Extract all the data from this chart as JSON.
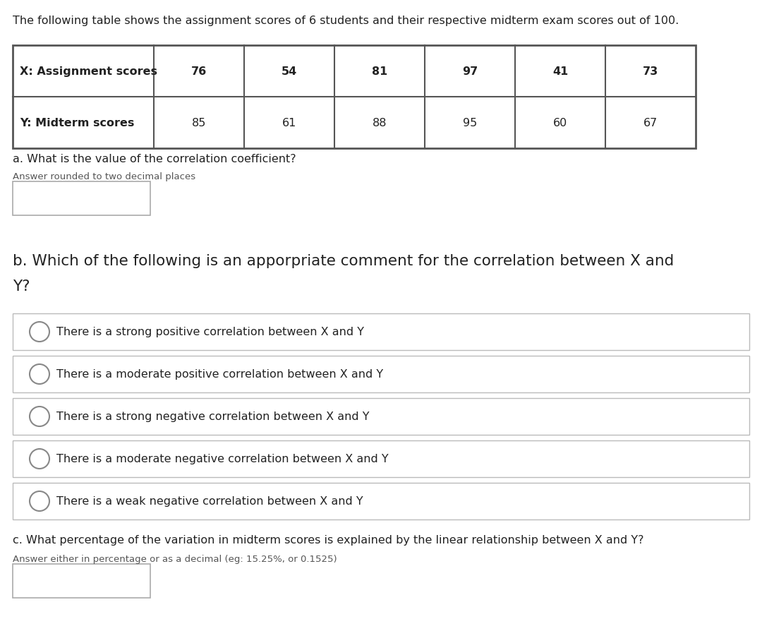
{
  "intro_text": "The following table shows the assignment scores of 6 students and their respective midterm exam scores out of 100.",
  "row1_label": "X: Assignment scores",
  "row2_label": "Y: Midterm scores",
  "x_values": [
    76,
    54,
    81,
    97,
    41,
    73
  ],
  "y_values": [
    85,
    61,
    88,
    95,
    60,
    67
  ],
  "question_a_title": "a. What is the value of the correlation coefficient?",
  "question_a_sub": "Answer rounded to two decimal places",
  "question_b_title": "b. Which of the following is an apporpriate comment for the correlation between X and Y?",
  "options": [
    "There is a strong positive correlation between X and Y",
    "There is a moderate positive correlation between X and Y",
    "There is a strong negative correlation between X and Y",
    "There is a moderate negative correlation between X and Y",
    "There is a weak negative correlation between X and Y"
  ],
  "question_c_title": "c. What percentage of the variation in midterm scores is explained by the linear relationship between X and Y?",
  "question_c_sub": "Answer either in percentage or as a decimal (eg: 15.25%, or 0.1525)",
  "bg_color": "#ffffff",
  "text_color": "#222222",
  "table_border_color": "#555555",
  "option_border_color": "#bbbbbb",
  "answer_box_border": "#aaaaaa",
  "radio_border_color": "#888888"
}
